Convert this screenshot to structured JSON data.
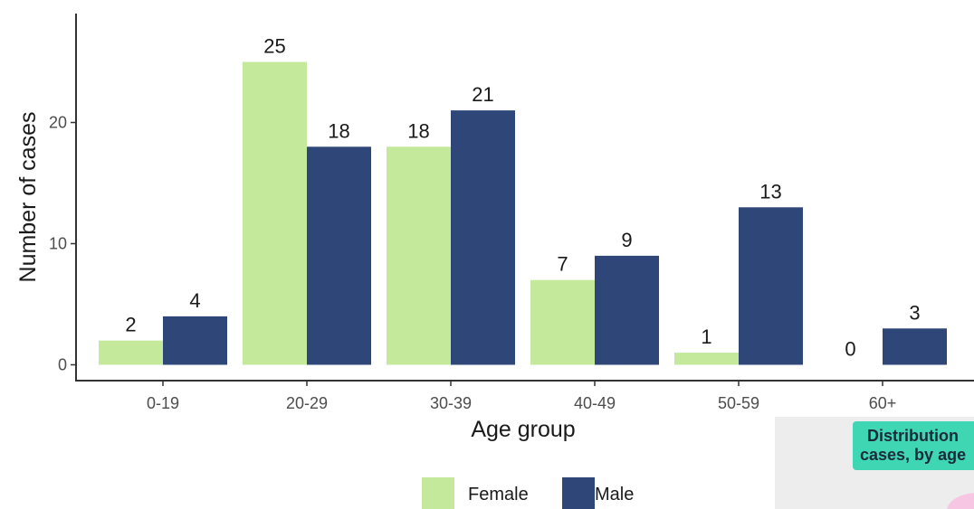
{
  "chart_data": {
    "type": "bar",
    "title": "",
    "xlabel": "Age group",
    "ylabel": "Number of cases",
    "categories": [
      "0-19",
      "20-29",
      "30-39",
      "40-49",
      "50-59",
      "60+"
    ],
    "series": [
      {
        "name": "Female",
        "color": "#c5e99b",
        "values": [
          2,
          25,
          18,
          7,
          1,
          0
        ]
      },
      {
        "name": "Male",
        "color": "#2e4678",
        "values": [
          4,
          18,
          21,
          9,
          13,
          3
        ]
      }
    ],
    "ylim": [
      0,
      29
    ],
    "yticks": [
      0,
      10,
      20
    ],
    "grid": false,
    "legend": "bottom"
  },
  "overlay": {
    "line1": "Distribution",
    "line2": "cases, by age"
  }
}
